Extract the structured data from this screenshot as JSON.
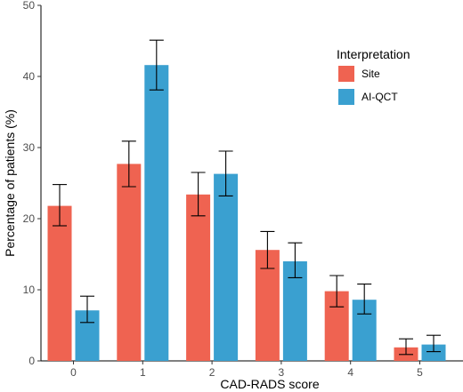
{
  "chart_data": {
    "type": "bar",
    "xlabel": "CAD-RADS score",
    "ylabel": "Percentage of patients (%)",
    "categories": [
      "0",
      "1",
      "2",
      "3",
      "4",
      "5"
    ],
    "ylim": [
      0,
      50
    ],
    "yticks": [
      "0",
      "10",
      "20",
      "30",
      "40",
      "50"
    ],
    "legend": {
      "title": "Interpretation",
      "position": "top-right"
    },
    "series": [
      {
        "name": "Site",
        "color": "#ef6351",
        "values": [
          21.8,
          27.7,
          23.4,
          15.6,
          9.8,
          1.9
        ],
        "error_low": [
          19.0,
          24.5,
          20.4,
          13.0,
          7.6,
          0.9
        ],
        "error_high": [
          24.8,
          30.9,
          26.5,
          18.2,
          12.0,
          3.1
        ]
      },
      {
        "name": "AI-QCT",
        "color": "#3aa0d0",
        "values": [
          7.1,
          41.6,
          26.3,
          14.0,
          8.6,
          2.3
        ],
        "error_low": [
          5.4,
          38.1,
          23.2,
          11.7,
          6.6,
          1.3
        ],
        "error_high": [
          9.1,
          45.1,
          29.5,
          16.6,
          10.8,
          3.6
        ]
      }
    ]
  }
}
